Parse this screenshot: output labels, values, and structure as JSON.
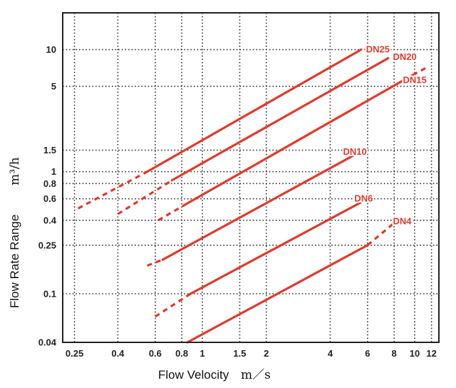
{
  "chart_data": {
    "type": "line",
    "title": "",
    "xlabel": "Flow Velocity",
    "xlabel_unit": "m／s",
    "ylabel": "Flow Rate Range",
    "ylabel_unit": "m³/h",
    "x_scale": "log",
    "y_scale": "log",
    "xlim": [
      0.22,
      13
    ],
    "ylim": [
      0.04,
      20
    ],
    "grid": true,
    "grid_style": "dotted",
    "line_color": "#e03a2e",
    "label_color": "#e03a2e",
    "x_ticks": [
      {
        "value": 0.25,
        "label": "0.25"
      },
      {
        "value": 0.4,
        "label": "0.4"
      },
      {
        "value": 0.6,
        "label": "0.6"
      },
      {
        "value": 0.8,
        "label": "0.8"
      },
      {
        "value": 1,
        "label": "1"
      },
      {
        "value": 1.5,
        "label": "1.5"
      },
      {
        "value": 2,
        "label": "2"
      },
      {
        "value": 4,
        "label": "4"
      },
      {
        "value": 6,
        "label": "6"
      },
      {
        "value": 8,
        "label": "8"
      },
      {
        "value": 10,
        "label": "10"
      },
      {
        "value": 12,
        "label": "12"
      }
    ],
    "y_ticks": [
      {
        "value": 0.04,
        "label": "0.04"
      },
      {
        "value": 0.1,
        "label": "0.1"
      },
      {
        "value": 0.25,
        "label": "0.25"
      },
      {
        "value": 0.4,
        "label": "0.4"
      },
      {
        "value": 0.6,
        "label": "0.6"
      },
      {
        "value": 0.8,
        "label": "0.8"
      },
      {
        "value": 1,
        "label": "1"
      },
      {
        "value": 1.5,
        "label": "1.5"
      },
      {
        "value": 5,
        "label": "5"
      },
      {
        "value": 10,
        "label": "10"
      }
    ],
    "series": [
      {
        "name": "DN25",
        "dashed": [
          [
            0.26,
            0.5
          ],
          [
            0.55,
            1.0
          ]
        ],
        "solid": [
          [
            0.55,
            1.0
          ],
          [
            5.6,
            10.0
          ]
        ]
      },
      {
        "name": "DN20",
        "dashed": [
          [
            0.4,
            0.45
          ],
          [
            0.72,
            0.85
          ]
        ],
        "solid": [
          [
            0.72,
            0.85
          ],
          [
            7.5,
            8.5
          ]
        ]
      },
      {
        "name": "DN15",
        "dashed": [
          [
            0.62,
            0.4
          ],
          [
            0.85,
            0.55
          ],
          [
            9.8,
            6.2
          ],
          [
            11.5,
            7.2
          ]
        ],
        "solid": [
          [
            0.85,
            0.55
          ],
          [
            9.8,
            6.2
          ]
        ]
      },
      {
        "name": "DN10",
        "dashed": [
          [
            0.55,
            0.17
          ],
          [
            0.65,
            0.19
          ],
          [
            5.0,
            1.32
          ],
          [
            5.6,
            1.5
          ]
        ],
        "solid": [
          [
            0.65,
            0.19
          ],
          [
            5.0,
            1.32
          ]
        ]
      },
      {
        "name": "DN6",
        "dashed": [
          [
            0.6,
            0.065
          ],
          [
            0.88,
            0.1
          ]
        ],
        "solid": [
          [
            0.88,
            0.1
          ],
          [
            6.0,
            0.6
          ]
        ]
      },
      {
        "name": "DN4",
        "dashed": [
          [
            6.0,
            0.25
          ],
          [
            8.0,
            0.38
          ]
        ],
        "solid": [
          [
            0.85,
            0.04
          ],
          [
            6.0,
            0.25
          ]
        ]
      }
    ],
    "labels": [
      {
        "text": "DN25",
        "x": 5.9,
        "y": 10.0
      },
      {
        "text": "DN20",
        "x": 7.9,
        "y": 8.7
      },
      {
        "text": "DN15",
        "x": 8.8,
        "y": 5.6
      },
      {
        "text": "DN10",
        "x": 4.6,
        "y": 1.45
      },
      {
        "text": "DN6",
        "x": 5.2,
        "y": 0.6
      },
      {
        "text": "DN4",
        "x": 7.9,
        "y": 0.39
      }
    ]
  }
}
